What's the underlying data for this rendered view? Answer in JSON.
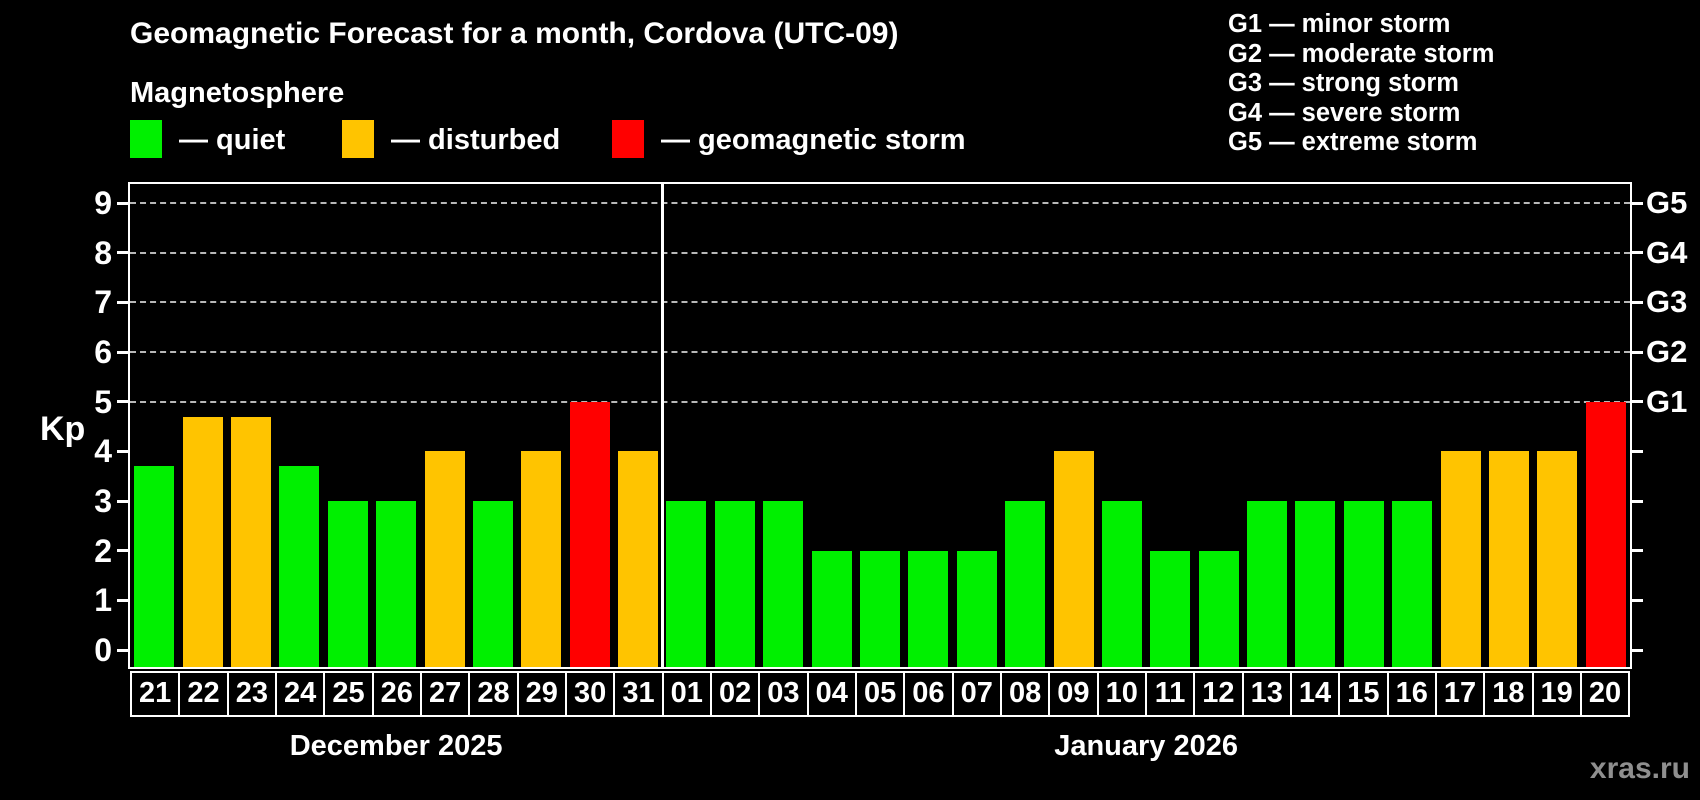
{
  "subtitle": "Magnetosphere",
  "watermark": "xras.ru",
  "legend": {
    "items": [
      {
        "status": "quiet",
        "label": "— quiet"
      },
      {
        "status": "disturbed",
        "label": "— disturbed"
      },
      {
        "status": "storm",
        "label": "— geomagnetic storm"
      }
    ]
  },
  "storm_scale_legend": [
    "G1 — minor storm",
    "G2 — moderate storm",
    "G3 — strong storm",
    "G4 — severe storm",
    "G5 — extreme storm"
  ],
  "chart_data": {
    "type": "bar",
    "title": "Geomagnetic Forecast for a month, Cordova (UTC-09)",
    "ylabel": "Kp",
    "ylim": [
      0,
      9
    ],
    "yticks": [
      0,
      1,
      2,
      3,
      4,
      5,
      6,
      7,
      8,
      9
    ],
    "grid_levels": [
      5,
      6,
      7,
      8,
      9
    ],
    "grid": "dashed horizontal lines at storm levels only",
    "legend_position": "top",
    "right_axis": [
      {
        "kp": 5,
        "label": "G1"
      },
      {
        "kp": 6,
        "label": "G2"
      },
      {
        "kp": 7,
        "label": "G3"
      },
      {
        "kp": 8,
        "label": "G4"
      },
      {
        "kp": 9,
        "label": "G5"
      }
    ],
    "status_colors": {
      "quiet": "#00f000",
      "disturbed": "#ffc400",
      "storm": "#ff0000"
    },
    "months": [
      {
        "label": "December 2025",
        "days": [
          {
            "day": "21",
            "kp": 3.7,
            "status": "quiet"
          },
          {
            "day": "22",
            "kp": 4.7,
            "status": "disturbed"
          },
          {
            "day": "23",
            "kp": 4.7,
            "status": "disturbed"
          },
          {
            "day": "24",
            "kp": 3.7,
            "status": "quiet"
          },
          {
            "day": "25",
            "kp": 3,
            "status": "quiet"
          },
          {
            "day": "26",
            "kp": 3,
            "status": "quiet"
          },
          {
            "day": "27",
            "kp": 4,
            "status": "disturbed"
          },
          {
            "day": "28",
            "kp": 3,
            "status": "quiet"
          },
          {
            "day": "29",
            "kp": 4,
            "status": "disturbed"
          },
          {
            "day": "30",
            "kp": 5,
            "status": "storm"
          },
          {
            "day": "31",
            "kp": 4,
            "status": "disturbed"
          }
        ]
      },
      {
        "label": "January 2026",
        "days": [
          {
            "day": "01",
            "kp": 3,
            "status": "quiet"
          },
          {
            "day": "02",
            "kp": 3,
            "status": "quiet"
          },
          {
            "day": "03",
            "kp": 3,
            "status": "quiet"
          },
          {
            "day": "04",
            "kp": 2,
            "status": "quiet"
          },
          {
            "day": "05",
            "kp": 2,
            "status": "quiet"
          },
          {
            "day": "06",
            "kp": 2,
            "status": "quiet"
          },
          {
            "day": "07",
            "kp": 2,
            "status": "quiet"
          },
          {
            "day": "08",
            "kp": 3,
            "status": "quiet"
          },
          {
            "day": "09",
            "kp": 4,
            "status": "disturbed"
          },
          {
            "day": "10",
            "kp": 3,
            "status": "quiet"
          },
          {
            "day": "11",
            "kp": 2,
            "status": "quiet"
          },
          {
            "day": "12",
            "kp": 2,
            "status": "quiet"
          },
          {
            "day": "13",
            "kp": 3,
            "status": "quiet"
          },
          {
            "day": "14",
            "kp": 3,
            "status": "quiet"
          },
          {
            "day": "15",
            "kp": 3,
            "status": "quiet"
          },
          {
            "day": "16",
            "kp": 3,
            "status": "quiet"
          },
          {
            "day": "17",
            "kp": 4,
            "status": "disturbed"
          },
          {
            "day": "18",
            "kp": 4,
            "status": "disturbed"
          },
          {
            "day": "19",
            "kp": 4,
            "status": "disturbed"
          },
          {
            "day": "20",
            "kp": 5,
            "status": "storm"
          }
        ]
      }
    ]
  }
}
